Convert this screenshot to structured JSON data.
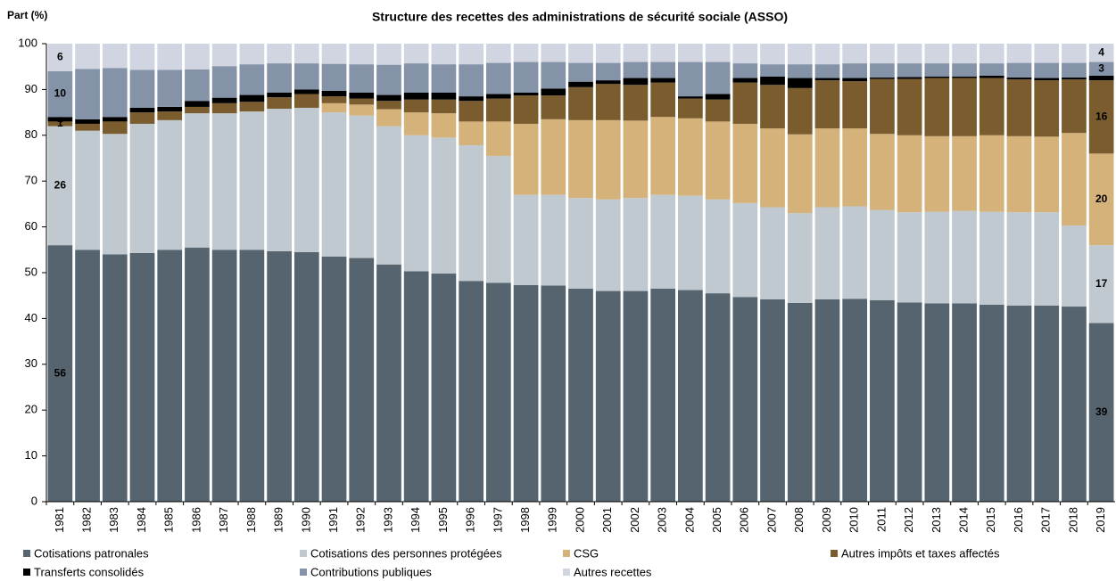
{
  "chart_data": {
    "type": "stacked_bar",
    "title": "Structure des recettes des administrations de sécurité sociale (ASSO)",
    "y_label": "Part (%)",
    "categories": [
      "1981",
      "1982",
      "1983",
      "1984",
      "1985",
      "1986",
      "1987",
      "1988",
      "1989",
      "1990",
      "1991",
      "1992",
      "1993",
      "1994",
      "1995",
      "1996",
      "1997",
      "1998",
      "1999",
      "2000",
      "2001",
      "2002",
      "2003",
      "2004",
      "2005",
      "2006",
      "2007",
      "2008",
      "2009",
      "2010",
      "2011",
      "2012",
      "2013",
      "2014",
      "2015",
      "2016",
      "2017",
      "2018",
      "2019"
    ],
    "ylim": [
      0,
      100
    ],
    "yticks": [
      0,
      10,
      20,
      30,
      40,
      50,
      60,
      70,
      80,
      90,
      100
    ],
    "grid": false,
    "series": [
      {
        "name": "Cotisations patronales",
        "color": "#56646f",
        "values": [
          56,
          55,
          54,
          54.3,
          55,
          55.5,
          55,
          55,
          54.7,
          54.5,
          53.5,
          53.2,
          51.8,
          50.3,
          49.8,
          48.2,
          47.8,
          47.3,
          47.2,
          46.5,
          46,
          46,
          46.5,
          46.2,
          45.5,
          44.7,
          44.2,
          43.4,
          44.2,
          44.3,
          44,
          43.5,
          43.3,
          43.3,
          43,
          42.8,
          42.8,
          42.6,
          39
        ],
        "value_labels": [
          "56",
          null,
          null,
          null,
          null,
          null,
          null,
          null,
          null,
          null,
          null,
          null,
          null,
          null,
          null,
          null,
          null,
          null,
          null,
          null,
          null,
          null,
          null,
          null,
          null,
          null,
          null,
          null,
          null,
          null,
          null,
          null,
          null,
          null,
          null,
          null,
          null,
          null,
          "39"
        ]
      },
      {
        "name": "Cotisations des personnes protégées",
        "color": "#bfc9cf",
        "values": [
          26,
          26,
          26.3,
          28.2,
          28.3,
          29.3,
          29.8,
          30.2,
          31.1,
          31.5,
          31.5,
          31.1,
          30.2,
          29.7,
          29.7,
          29.6,
          27.7,
          19.7,
          19.8,
          19.8,
          20,
          20.3,
          20.5,
          20.6,
          20.5,
          20.5,
          20.1,
          19.6,
          20.1,
          20.2,
          19.7,
          19.7,
          20,
          20.2,
          20.3,
          20.4,
          20.4,
          17.7,
          17
        ],
        "value_labels": [
          "26",
          null,
          null,
          null,
          null,
          null,
          null,
          null,
          null,
          null,
          null,
          null,
          null,
          null,
          null,
          null,
          null,
          null,
          null,
          null,
          null,
          null,
          null,
          null,
          null,
          null,
          null,
          null,
          null,
          null,
          null,
          null,
          null,
          null,
          null,
          null,
          null,
          null,
          "17"
        ]
      },
      {
        "name": "CSG",
        "color": "#d4b27a",
        "values": [
          0,
          0,
          0,
          0,
          0,
          0,
          0,
          0,
          0,
          0,
          2,
          2.4,
          3.7,
          5,
          5.3,
          5.2,
          7.5,
          15.5,
          16.5,
          17,
          17.3,
          16.9,
          17,
          16.9,
          17,
          17.3,
          17.2,
          17.2,
          17.2,
          17,
          16.6,
          16.8,
          16.5,
          16.3,
          16.7,
          16.6,
          16.5,
          20.2,
          20
        ],
        "value_labels": [
          null,
          null,
          null,
          null,
          null,
          null,
          null,
          null,
          null,
          null,
          null,
          null,
          null,
          null,
          null,
          null,
          null,
          null,
          null,
          null,
          null,
          null,
          null,
          null,
          null,
          null,
          null,
          null,
          null,
          null,
          null,
          null,
          null,
          null,
          null,
          null,
          null,
          null,
          "20"
        ]
      },
      {
        "name": "Autres impôts et taxes affectés",
        "color": "#7a5c2e",
        "values": [
          1,
          1.5,
          2.7,
          2.5,
          1.9,
          1.4,
          2.2,
          2.1,
          2.5,
          3,
          1.5,
          1.3,
          1.8,
          2.8,
          3,
          4.5,
          5,
          6.2,
          5.2,
          7.2,
          7.9,
          7.8,
          7.5,
          4.3,
          4.8,
          9,
          9.5,
          10.1,
          10.5,
          10.3,
          12,
          12.3,
          12.7,
          12.7,
          12.5,
          12.4,
          12.3,
          11.7,
          16
        ],
        "value_labels": [
          "1",
          null,
          null,
          null,
          null,
          null,
          null,
          null,
          null,
          null,
          null,
          null,
          null,
          null,
          null,
          null,
          null,
          null,
          null,
          null,
          null,
          null,
          null,
          null,
          null,
          null,
          null,
          null,
          null,
          null,
          null,
          null,
          null,
          null,
          null,
          null,
          null,
          null,
          "16"
        ]
      },
      {
        "name": "Transferts consolidés",
        "color": "#000000",
        "values": [
          1,
          1,
          1,
          1,
          1,
          1.3,
          1.2,
          1.5,
          1,
          1,
          1.2,
          1.3,
          1.3,
          1.5,
          1.5,
          1,
          1,
          0.6,
          1.5,
          1.2,
          0.8,
          1.5,
          1,
          0.5,
          1.2,
          1,
          1.8,
          2.2,
          0.5,
          0.7,
          0.3,
          0.4,
          0.3,
          0.3,
          0.5,
          0.4,
          0.5,
          0.4,
          1
        ],
        "value_labels": [
          "1",
          null,
          null,
          null,
          null,
          null,
          null,
          null,
          null,
          null,
          null,
          null,
          null,
          null,
          null,
          null,
          null,
          null,
          null,
          null,
          null,
          null,
          null,
          null,
          null,
          null,
          null,
          null,
          null,
          null,
          null,
          null,
          null,
          null,
          null,
          null,
          null,
          null,
          null
        ]
      },
      {
        "name": "Contributions publiques",
        "color": "#8493a8",
        "values": [
          10,
          11,
          10.7,
          8.3,
          8.1,
          6.9,
          6.9,
          6.7,
          6.4,
          5.7,
          5.9,
          6.2,
          6.6,
          6.4,
          6.2,
          7,
          6.8,
          6.7,
          5.8,
          4.1,
          3.8,
          3.5,
          3.5,
          7.5,
          7,
          3.2,
          2.7,
          3,
          3,
          3.2,
          3.1,
          3,
          2.9,
          2.9,
          2.7,
          3.2,
          3.3,
          3.2,
          3
        ],
        "value_labels": [
          "10",
          null,
          null,
          null,
          null,
          null,
          null,
          null,
          null,
          null,
          null,
          null,
          null,
          null,
          null,
          null,
          null,
          null,
          null,
          null,
          null,
          null,
          null,
          null,
          null,
          null,
          null,
          null,
          null,
          null,
          null,
          null,
          null,
          null,
          null,
          null,
          null,
          null,
          "3"
        ]
      },
      {
        "name": "Autres recettes",
        "color": "#d0d5e1",
        "values": [
          6,
          5.5,
          5.3,
          5.7,
          5.7,
          5.6,
          4.9,
          4.5,
          4.3,
          4.3,
          4.4,
          4.5,
          4.6,
          4.3,
          4.5,
          4.5,
          4.2,
          4,
          4,
          4.2,
          4.2,
          4,
          4,
          4,
          4,
          4.3,
          4.5,
          4.5,
          4.5,
          4.3,
          4.3,
          4.3,
          4.3,
          4.3,
          4.3,
          4.2,
          4.2,
          4.2,
          4
        ],
        "value_labels": [
          "6",
          null,
          null,
          null,
          null,
          null,
          null,
          null,
          null,
          null,
          null,
          null,
          null,
          null,
          null,
          null,
          null,
          null,
          null,
          null,
          null,
          null,
          null,
          null,
          null,
          null,
          null,
          null,
          null,
          null,
          null,
          null,
          null,
          null,
          null,
          null,
          null,
          null,
          "4"
        ]
      }
    ]
  }
}
